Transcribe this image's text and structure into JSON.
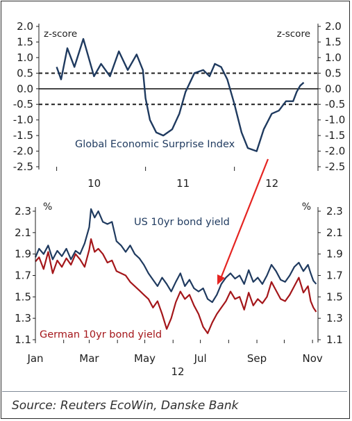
{
  "source": "Source: Reuters EcoWin, Danske Bank",
  "chart_data": [
    {
      "type": "line",
      "title": "",
      "xlabel": "",
      "ylabel": "z-score",
      "ylabel_right": "z-score",
      "ylim": [
        -2.5,
        2.0
      ],
      "y_ticks": [
        "2.0",
        "1.5",
        "1.0",
        "0.5",
        "0.0",
        "-0.5",
        "-1.0",
        "-1.5",
        "-2.0",
        "-2.5"
      ],
      "x_ticks": [
        "10",
        "11",
        "12"
      ],
      "reference_lines": [
        {
          "y": 0.5,
          "style": "dashed"
        },
        {
          "y": 0.0,
          "style": "solid"
        },
        {
          "y": -0.5,
          "style": "dashed"
        }
      ],
      "annotations": [
        "Global Economic Surprise Index"
      ],
      "series": [
        {
          "name": "Global Economic Surprise Index",
          "color": "#1f3a5f",
          "x": [
            2010.0,
            2010.05,
            2010.12,
            2010.2,
            2010.3,
            2010.42,
            2010.5,
            2010.6,
            2010.7,
            2010.8,
            2010.9,
            2010.97,
            2011.0,
            2011.05,
            2011.12,
            2011.2,
            2011.3,
            2011.38,
            2011.45,
            2011.55,
            2011.65,
            2011.72,
            2011.78,
            2011.85,
            2011.92,
            2012.0,
            2012.08,
            2012.15,
            2012.25,
            2012.33,
            2012.42,
            2012.5,
            2012.58,
            2012.66,
            2012.7,
            2012.74,
            2012.78
          ],
          "values": [
            0.7,
            0.3,
            1.3,
            0.7,
            1.6,
            0.4,
            0.8,
            0.4,
            1.2,
            0.6,
            1.1,
            0.6,
            -0.3,
            -1.0,
            -1.4,
            -1.5,
            -1.3,
            -0.8,
            -0.1,
            0.5,
            0.6,
            0.4,
            0.8,
            0.7,
            0.3,
            -0.5,
            -1.4,
            -1.9,
            -2.0,
            -1.3,
            -0.8,
            -0.7,
            -0.4,
            -0.4,
            -0.1,
            0.1,
            0.2
          ]
        }
      ]
    },
    {
      "type": "line",
      "title": "",
      "xlabel": "12",
      "ylabel": "%",
      "ylabel_right": "%",
      "ylim": [
        1.1,
        2.3
      ],
      "y_ticks": [
        "2.3",
        "2.1",
        "1.9",
        "1.7",
        "1.5",
        "1.3",
        "1.1"
      ],
      "x_ticks": [
        "Jan",
        "Mar",
        "May",
        "Jul",
        "Sep",
        "Nov"
      ],
      "annotations": [
        "US 10yr bond yield",
        "German 10yr bond yield"
      ],
      "series": [
        {
          "name": "US 10yr bond yield",
          "color": "#1f3a5f",
          "x": [
            1,
            5,
            10,
            15,
            20,
            25,
            30,
            35,
            40,
            45,
            50,
            55,
            60,
            62,
            64,
            66,
            70,
            75,
            80,
            85,
            90,
            95,
            100,
            105,
            110,
            115,
            120,
            125,
            130,
            135,
            140,
            145,
            150,
            155,
            160,
            165,
            170,
            175,
            180,
            185,
            190,
            195,
            200,
            205,
            210,
            215,
            220,
            225,
            230,
            235,
            240,
            245,
            250,
            255,
            260,
            265,
            270,
            275,
            280,
            285,
            290,
            295,
            300,
            303,
            306,
            309
          ],
          "values": [
            1.87,
            1.95,
            1.9,
            1.98,
            1.85,
            1.93,
            1.88,
            1.95,
            1.85,
            1.93,
            1.9,
            2.0,
            2.15,
            2.32,
            2.28,
            2.24,
            2.3,
            2.2,
            2.18,
            2.2,
            2.02,
            1.98,
            1.92,
            1.98,
            1.9,
            1.86,
            1.8,
            1.72,
            1.66,
            1.6,
            1.68,
            1.62,
            1.55,
            1.64,
            1.72,
            1.6,
            1.66,
            1.58,
            1.55,
            1.58,
            1.48,
            1.45,
            1.52,
            1.62,
            1.68,
            1.72,
            1.67,
            1.7,
            1.62,
            1.75,
            1.64,
            1.68,
            1.62,
            1.7,
            1.8,
            1.74,
            1.66,
            1.64,
            1.7,
            1.78,
            1.82,
            1.74,
            1.8,
            1.72,
            1.65,
            1.62
          ]
        },
        {
          "name": "German 10yr bond yield",
          "color": "#a4161a",
          "x": [
            1,
            5,
            10,
            15,
            20,
            25,
            30,
            35,
            40,
            45,
            50,
            55,
            60,
            62,
            64,
            66,
            70,
            75,
            80,
            85,
            90,
            95,
            100,
            105,
            110,
            115,
            120,
            125,
            130,
            135,
            140,
            145,
            150,
            155,
            160,
            165,
            170,
            175,
            180,
            185,
            190,
            195,
            200,
            205,
            210,
            215,
            220,
            225,
            230,
            235,
            240,
            245,
            250,
            255,
            260,
            265,
            270,
            275,
            280,
            285,
            290,
            295,
            300,
            303,
            306,
            309
          ],
          "values": [
            1.83,
            1.87,
            1.76,
            1.92,
            1.72,
            1.84,
            1.78,
            1.86,
            1.8,
            1.9,
            1.85,
            1.78,
            1.94,
            2.04,
            1.98,
            1.92,
            1.95,
            1.9,
            1.82,
            1.84,
            1.74,
            1.72,
            1.7,
            1.64,
            1.6,
            1.56,
            1.52,
            1.48,
            1.4,
            1.46,
            1.34,
            1.2,
            1.3,
            1.45,
            1.55,
            1.48,
            1.52,
            1.42,
            1.34,
            1.22,
            1.16,
            1.26,
            1.34,
            1.4,
            1.46,
            1.55,
            1.48,
            1.5,
            1.38,
            1.54,
            1.42,
            1.48,
            1.44,
            1.5,
            1.64,
            1.56,
            1.48,
            1.46,
            1.52,
            1.6,
            1.68,
            1.54,
            1.6,
            1.46,
            1.4,
            1.36
          ]
        }
      ]
    }
  ]
}
